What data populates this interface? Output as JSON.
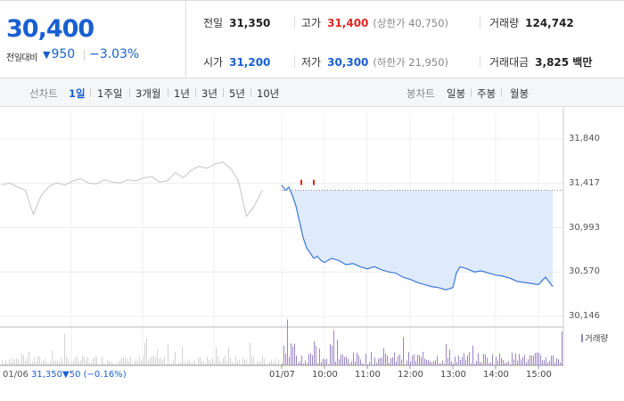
{
  "price": {
    "current": "30,400",
    "change_label": "전일대비",
    "change_arrow": "▼",
    "change_value": "950",
    "change_pct": "−3.03%"
  },
  "stats": {
    "prev_close": {
      "label": "전일",
      "value": "31,350"
    },
    "high": {
      "label": "고가",
      "value": "31,400",
      "sub": "(상한가 40,750)"
    },
    "volume": {
      "label": "거래량",
      "value": "124,742"
    },
    "open": {
      "label": "시가",
      "value": "31,200"
    },
    "low": {
      "label": "저가",
      "value": "30,300",
      "sub": "(하한가 21,950)"
    },
    "trade_amount": {
      "label": "거래대금",
      "value": "3,825 백만"
    }
  },
  "toolbar": {
    "line_chart_label": "선차트",
    "periods": [
      "1일",
      "1주일",
      "3개월",
      "1년",
      "3년",
      "5년",
      "10년"
    ],
    "active_period": "1일",
    "candle_chart_label": "봉차트",
    "candle_periods": [
      "일봉",
      "주봉",
      "월봉"
    ]
  },
  "chart_data": {
    "type": "line",
    "y_ticks": [
      "31,840",
      "31,417",
      "30,993",
      "30,570",
      "30,146"
    ],
    "ylim": [
      30146,
      31840
    ],
    "x_ticks": [
      "01/06",
      "01/07",
      "10:00",
      "11:00",
      "12:00",
      "13:00",
      "14:00",
      "15:00"
    ],
    "prev_day_summary": {
      "date": "01/06",
      "close": "31,350",
      "arrow": "▼",
      "change": "50",
      "pct": "(−0.16%)"
    },
    "legend": "거래량",
    "colors": {
      "prev_day": "#c4c4c4",
      "today": "#3c78d8",
      "fill": "#dfeafa",
      "volume": "#9b84c4",
      "volume_prev": "#d2d2d2"
    },
    "today_series": [
      [
        "09:00",
        31400
      ],
      [
        "09:05",
        31350
      ],
      [
        "09:10",
        31380
      ],
      [
        "09:15",
        31300
      ],
      [
        "09:20",
        31200
      ],
      [
        "09:25",
        31050
      ],
      [
        "09:30",
        30900
      ],
      [
        "09:35",
        30800
      ],
      [
        "09:40",
        30750
      ],
      [
        "09:45",
        30700
      ],
      [
        "09:50",
        30720
      ],
      [
        "09:55",
        30680
      ],
      [
        "10:00",
        30660
      ],
      [
        "10:10",
        30700
      ],
      [
        "10:20",
        30680
      ],
      [
        "10:30",
        30640
      ],
      [
        "10:40",
        30650
      ],
      [
        "10:50",
        30620
      ],
      [
        "11:00",
        30600
      ],
      [
        "11:10",
        30620
      ],
      [
        "11:20",
        30590
      ],
      [
        "11:30",
        30570
      ],
      [
        "11:40",
        30560
      ],
      [
        "11:50",
        30520
      ],
      [
        "12:00",
        30500
      ],
      [
        "12:10",
        30470
      ],
      [
        "12:20",
        30450
      ],
      [
        "12:30",
        30430
      ],
      [
        "12:40",
        30420
      ],
      [
        "12:50",
        30400
      ],
      [
        "13:00",
        30420
      ],
      [
        "13:05",
        30560
      ],
      [
        "13:10",
        30620
      ],
      [
        "13:20",
        30600
      ],
      [
        "13:30",
        30570
      ],
      [
        "13:40",
        30580
      ],
      [
        "13:50",
        30560
      ],
      [
        "14:00",
        30540
      ],
      [
        "14:10",
        30530
      ],
      [
        "14:20",
        30510
      ],
      [
        "14:30",
        30480
      ],
      [
        "14:40",
        30470
      ],
      [
        "14:50",
        30460
      ],
      [
        "15:00",
        30450
      ],
      [
        "15:10",
        30520
      ],
      [
        "15:20",
        30430
      ]
    ],
    "prev_series": [
      31400,
      31420,
      31380,
      31350,
      31120,
      31300,
      31390,
      31420,
      31400,
      31440,
      31460,
      31420,
      31410,
      31450,
      31430,
      31420,
      31450,
      31440,
      31470,
      31480,
      31430,
      31440,
      31520,
      31470,
      31540,
      31580,
      31560,
      31600,
      31620,
      31560,
      31440,
      31100,
      31200,
      31350
    ]
  }
}
